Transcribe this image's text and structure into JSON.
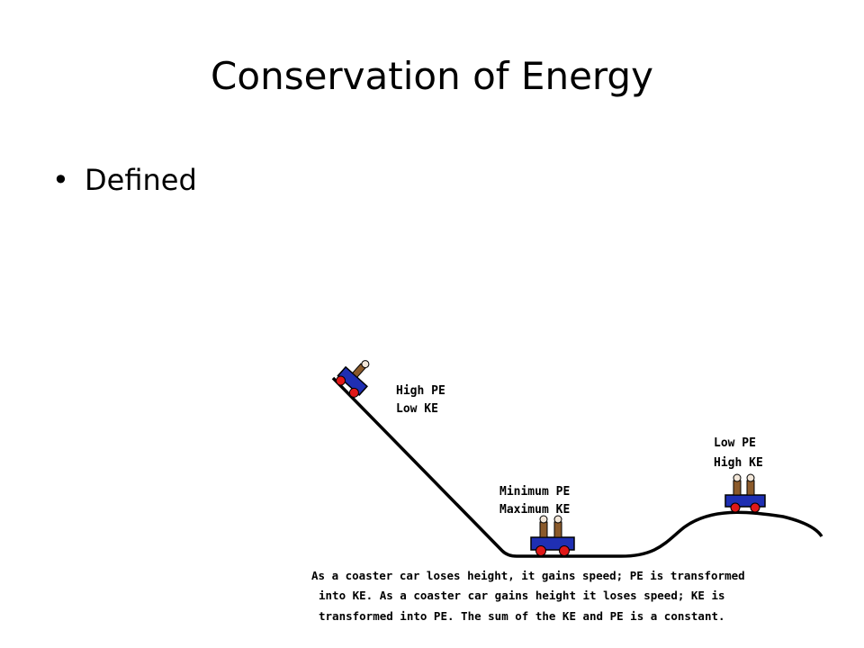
{
  "slide": {
    "title": "Conservation of Energy",
    "bullets": [
      {
        "symbol": "•",
        "text": "Defined"
      }
    ]
  },
  "diagram": {
    "labels": {
      "top": {
        "line1": "High PE",
        "line2": "Low KE"
      },
      "bottom": {
        "line1": "Minimum PE",
        "line2": "Maximum KE"
      },
      "hill": {
        "line1": "Low PE",
        "line2": "High KE"
      }
    },
    "caption_lines": [
      "As a coaster car loses height, it gains speed;  PE is transformed",
      "into KE.  As a coaster car gains height it loses speed;  KE is",
      "transformed into PE.  The sum of the KE and PE is a constant."
    ],
    "colors": {
      "car_body": "#1f2fb3",
      "wheels": "#e01818",
      "rider": "#8b5a2b",
      "track": "#000000"
    }
  }
}
